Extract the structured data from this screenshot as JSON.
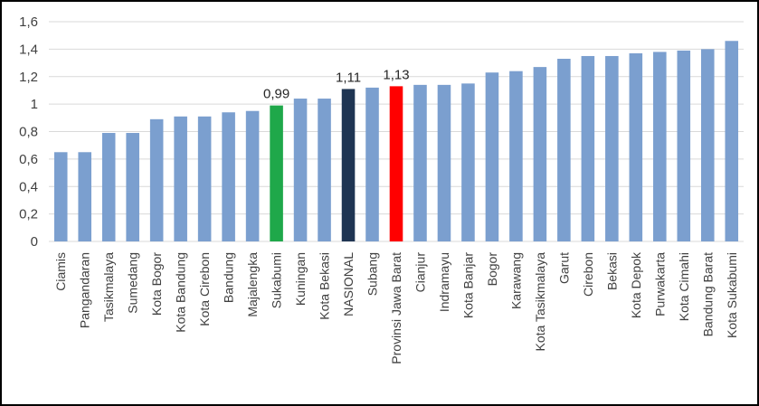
{
  "chart_data": {
    "type": "bar",
    "title": "",
    "xlabel": "",
    "ylabel": "",
    "ylim": [
      0,
      1.6
    ],
    "yticks": [
      0,
      0.2,
      0.4,
      0.6,
      0.8,
      1,
      1.2,
      1.4,
      1.6
    ],
    "ytick_labels": [
      "0",
      "0,2",
      "0,4",
      "0,6",
      "0,8",
      "1",
      "1,2",
      "1,4",
      "1,6"
    ],
    "grid": true,
    "legend": "none",
    "categories": [
      "Ciamis",
      "Pangandaran",
      "Tasikmalaya",
      "Sumedang",
      "Kota Bogor",
      "Kota Bandung",
      "Kota Cirebon",
      "Bandung",
      "Majalengka",
      "Sukabumi",
      "Kuningan",
      "Kota Bekasi",
      "NASIONAL",
      "Subang",
      "Provinsi Jawa Barat",
      "Cianjur",
      "Indramayu",
      "Kota Banjar",
      "Bogor",
      "Karawang",
      "Kota Tasikmalaya",
      "Garut",
      "Cirebon",
      "Bekasi",
      "Kota Depok",
      "Purwakarta",
      "Kota Cimahi",
      "Bandung Barat",
      "Kota Sukabumi"
    ],
    "values": [
      0.65,
      0.65,
      0.79,
      0.79,
      0.89,
      0.91,
      0.91,
      0.94,
      0.95,
      0.99,
      1.04,
      1.04,
      1.11,
      1.12,
      1.13,
      1.14,
      1.14,
      1.15,
      1.23,
      1.24,
      1.27,
      1.33,
      1.35,
      1.35,
      1.37,
      1.38,
      1.39,
      1.4,
      1.46
    ],
    "colors": {
      "default": "#7b9fcf",
      "Sukabumi": "#1fa84a",
      "NASIONAL": "#1f3553",
      "Provinsi Jawa Barat": "#ff0000"
    },
    "data_labels": [
      {
        "category": "Sukabumi",
        "text": "0,99"
      },
      {
        "category": "NASIONAL",
        "text": "1,11"
      },
      {
        "category": "Provinsi Jawa Barat",
        "text": "1,13"
      }
    ]
  }
}
